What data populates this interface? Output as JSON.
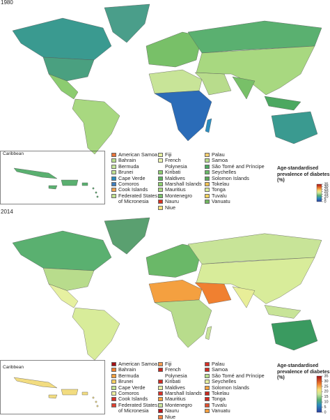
{
  "panels": [
    {
      "year": "1980",
      "inset_label": "Caribbean",
      "legend": [
        {
          "name": "American Samoa",
          "color": "#e8733a"
        },
        {
          "name": "Bahrain",
          "color": "#b8dc8c"
        },
        {
          "name": "Bermuda",
          "color": "#c5e49a"
        },
        {
          "name": "Brunei",
          "color": "#c0e090"
        },
        {
          "name": "Cape Verde",
          "color": "#2b8cbe"
        },
        {
          "name": "Comoros",
          "color": "#3f7fbf"
        },
        {
          "name": "Cook Islands",
          "color": "#f0a050"
        },
        {
          "name": "Federated States of Micronesia",
          "color": "#c0e090"
        },
        {
          "name": "Fiji",
          "color": "#e6f0a0"
        },
        {
          "name": "French Polynesia",
          "color": "#eef6b0"
        },
        {
          "name": "Kiribati",
          "color": "#8ccc70"
        },
        {
          "name": "Maldives",
          "color": "#60b060"
        },
        {
          "name": "Marshall Islands",
          "color": "#8ed070"
        },
        {
          "name": "Mauritius",
          "color": "#a8d880"
        },
        {
          "name": "Montenegro",
          "color": "#78c068"
        },
        {
          "name": "Nauru",
          "color": "#d7301f"
        },
        {
          "name": "Niue",
          "color": "#f5e07a"
        },
        {
          "name": "Palau",
          "color": "#f8d070"
        },
        {
          "name": "Samoa",
          "color": "#b8dc8c"
        },
        {
          "name": "São Tomé and Príncipe",
          "color": "#4ca860"
        },
        {
          "name": "Seychelles",
          "color": "#6ab868"
        },
        {
          "name": "Solomon Islands",
          "color": "#5aa95a"
        },
        {
          "name": "Tokelau",
          "color": "#f0c050"
        },
        {
          "name": "Tonga",
          "color": "#d8ec9a"
        },
        {
          "name": "Tuvalu",
          "color": "#f6d45e"
        },
        {
          "name": "Vanuatu",
          "color": "#72b860"
        }
      ],
      "colorbar": {
        "title": "Age-standardised prevalence of diabetes (%)",
        "lim": [
          0,
          35
        ],
        "ticks": [
          0,
          5,
          10,
          15,
          20,
          25,
          30,
          35
        ]
      }
    },
    {
      "year": "2014",
      "inset_label": "Caribbean",
      "legend": [
        {
          "name": "American Samoa",
          "color": "#a50f15"
        },
        {
          "name": "Bahrain",
          "color": "#f08030"
        },
        {
          "name": "Bermuda",
          "color": "#f4a040"
        },
        {
          "name": "Brunei",
          "color": "#f8d060"
        },
        {
          "name": "Cape Verde",
          "color": "#c0e090"
        },
        {
          "name": "Comoros",
          "color": "#eef0a0"
        },
        {
          "name": "Cook Islands",
          "color": "#d73027"
        },
        {
          "name": "Federated States of Micronesia",
          "color": "#e04030"
        },
        {
          "name": "Fiji",
          "color": "#f49b50"
        },
        {
          "name": "French Polynesia",
          "color": "#c8281e"
        },
        {
          "name": "Kiribati",
          "color": "#d02a20"
        },
        {
          "name": "Maldives",
          "color": "#e8eea0"
        },
        {
          "name": "Marshall Islands",
          "color": "#d73027"
        },
        {
          "name": "Mauritius",
          "color": "#f4a040"
        },
        {
          "name": "Montenegro",
          "color": "#c8e498"
        },
        {
          "name": "Nauru",
          "color": "#b4141c"
        },
        {
          "name": "Niue",
          "color": "#f08040"
        },
        {
          "name": "Palau",
          "color": "#d73027"
        },
        {
          "name": "Samoa",
          "color": "#d02a20"
        },
        {
          "name": "São Tomé and Príncipe",
          "color": "#b8dc8c"
        },
        {
          "name": "Seychelles",
          "color": "#e6f0a0"
        },
        {
          "name": "Solomon Islands",
          "color": "#f4a040"
        },
        {
          "name": "Tokelau",
          "color": "#c8281e"
        },
        {
          "name": "Tonga",
          "color": "#d02a20"
        },
        {
          "name": "Tuvalu",
          "color": "#e05030"
        },
        {
          "name": "Vanuatu",
          "color": "#f4a040"
        }
      ],
      "colorbar": {
        "title": "Age-standardised prevalence of diabetes (%)",
        "lim": [
          0,
          35
        ],
        "ticks": [
          0,
          5,
          10,
          15,
          20,
          25,
          30,
          35
        ]
      }
    }
  ]
}
